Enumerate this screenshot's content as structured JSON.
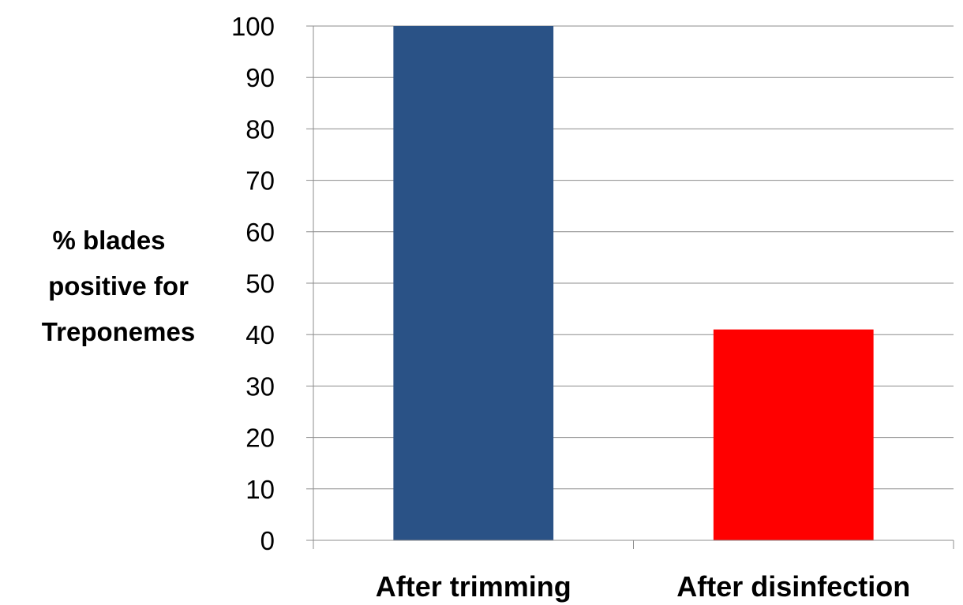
{
  "chart_data": {
    "type": "bar",
    "title": "",
    "ylabel_lines": [
      "% blades",
      "positive for",
      "Treponemes"
    ],
    "xlabel": "",
    "categories": [
      "After trimming",
      "After disinfection"
    ],
    "values": [
      100,
      41
    ],
    "bar_colors": [
      "#2a5286",
      "#ff0000"
    ],
    "ylim": [
      0,
      100
    ],
    "yticks": [
      0,
      10,
      20,
      30,
      40,
      50,
      60,
      70,
      80,
      90,
      100
    ],
    "grid": true,
    "legend": "none"
  }
}
